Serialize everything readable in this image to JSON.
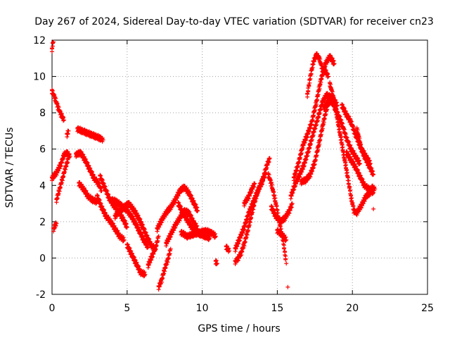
{
  "chart_data": {
    "type": "scatter",
    "title": "Day 267 of 2024, Sidereal Day-to-day VTEC variation (SDTVAR) for receiver cn23",
    "xlabel": "GPS time / hours",
    "ylabel": "SDTVAR / TECUs",
    "xlim": [
      0,
      25
    ],
    "ylim": [
      -2,
      12
    ],
    "xticks": [
      0,
      5,
      10,
      15,
      20,
      25
    ],
    "yticks": [
      -2,
      0,
      2,
      4,
      6,
      8,
      10,
      12
    ],
    "grid": true,
    "marker": "+",
    "series": [
      {
        "name": "SDTVAR",
        "color": "#ff0000",
        "note": "Values digitized from the plotted tracks (approximate).",
        "tracks": [
          [
            [
              0.0,
              11.5
            ],
            [
              0.05,
              11.8
            ],
            [
              0.1,
              11.9
            ]
          ],
          [
            [
              0.0,
              9.2
            ],
            [
              0.2,
              8.8
            ],
            [
              0.4,
              8.3
            ],
            [
              0.6,
              7.9
            ],
            [
              0.8,
              7.6
            ]
          ],
          [
            [
              0.0,
              4.4
            ],
            [
              0.3,
              4.7
            ],
            [
              0.6,
              5.2
            ],
            [
              0.8,
              5.7
            ],
            [
              1.0,
              5.8
            ],
            [
              1.2,
              5.6
            ]
          ],
          [
            [
              0.1,
              1.6
            ],
            [
              0.2,
              1.8
            ],
            [
              0.3,
              1.9
            ]
          ],
          [
            [
              0.3,
              3.2
            ],
            [
              0.5,
              3.8
            ],
            [
              0.7,
              4.4
            ],
            [
              0.9,
              5.0
            ],
            [
              1.1,
              5.5
            ]
          ],
          [
            [
              1.0,
              6.8
            ],
            [
              1.1,
              7.0
            ]
          ],
          [
            [
              1.7,
              7.1
            ],
            [
              2.0,
              7.0
            ],
            [
              2.3,
              6.9
            ],
            [
              2.6,
              6.8
            ],
            [
              2.9,
              6.7
            ],
            [
              3.2,
              6.6
            ],
            [
              3.4,
              6.5
            ]
          ],
          [
            [
              1.6,
              5.7
            ],
            [
              1.9,
              5.8
            ],
            [
              2.2,
              5.4
            ],
            [
              2.5,
              4.9
            ],
            [
              2.8,
              4.4
            ],
            [
              3.1,
              4.1
            ],
            [
              3.3,
              3.7
            ]
          ],
          [
            [
              1.8,
              4.1
            ],
            [
              2.1,
              3.8
            ],
            [
              2.4,
              3.4
            ],
            [
              2.7,
              3.2
            ],
            [
              3.0,
              3.1
            ]
          ],
          [
            [
              3.0,
              3.4
            ],
            [
              3.3,
              2.8
            ],
            [
              3.6,
              2.3
            ],
            [
              3.9,
              2.0
            ],
            [
              4.2,
              1.6
            ],
            [
              4.5,
              1.2
            ],
            [
              4.8,
              1.0
            ]
          ],
          [
            [
              3.2,
              4.5
            ],
            [
              3.5,
              3.9
            ],
            [
              3.8,
              3.3
            ],
            [
              4.1,
              2.9
            ],
            [
              4.4,
              2.6
            ],
            [
              4.7,
              2.2
            ],
            [
              5.0,
              1.7
            ]
          ],
          [
            [
              4.0,
              3.2
            ],
            [
              4.3,
              3.1
            ],
            [
              4.6,
              2.9
            ],
            [
              4.9,
              2.7
            ],
            [
              5.2,
              2.4
            ],
            [
              5.5,
              2.0
            ],
            [
              5.8,
              1.5
            ],
            [
              6.1,
              1.0
            ],
            [
              6.4,
              0.6
            ]
          ],
          [
            [
              4.2,
              2.3
            ],
            [
              4.5,
              2.6
            ],
            [
              4.8,
              2.8
            ],
            [
              5.1,
              3.0
            ],
            [
              5.4,
              2.7
            ],
            [
              5.7,
              2.3
            ],
            [
              6.0,
              1.8
            ],
            [
              6.3,
              1.2
            ],
            [
              6.6,
              0.7
            ],
            [
              6.9,
              0.5
            ]
          ],
          [
            [
              5.0,
              0.7
            ],
            [
              5.3,
              0.2
            ],
            [
              5.6,
              -0.3
            ],
            [
              5.9,
              -0.8
            ],
            [
              6.2,
              -0.9
            ]
          ],
          [
            [
              6.4,
              -0.4
            ],
            [
              6.7,
              0.2
            ],
            [
              6.9,
              0.6
            ],
            [
              7.1,
              1.2
            ]
          ],
          [
            [
              7.1,
              -1.6
            ],
            [
              7.3,
              -1.2
            ],
            [
              7.5,
              -0.6
            ],
            [
              7.7,
              -0.1
            ],
            [
              7.9,
              0.5
            ]
          ],
          [
            [
              7.0,
              1.6
            ],
            [
              7.3,
              2.1
            ],
            [
              7.6,
              2.5
            ],
            [
              7.9,
              2.8
            ],
            [
              8.2,
              3.2
            ],
            [
              8.5,
              3.7
            ],
            [
              8.8,
              3.9
            ],
            [
              9.1,
              3.6
            ],
            [
              9.4,
              3.1
            ],
            [
              9.7,
              2.6
            ]
          ],
          [
            [
              7.6,
              0.8
            ],
            [
              7.9,
              1.3
            ],
            [
              8.2,
              1.8
            ],
            [
              8.5,
              2.2
            ],
            [
              8.8,
              2.6
            ],
            [
              9.1,
              2.5
            ],
            [
              9.4,
              2.0
            ],
            [
              9.7,
              1.6
            ]
          ],
          [
            [
              8.4,
              3.0
            ],
            [
              8.7,
              2.5
            ],
            [
              9.0,
              2.1
            ],
            [
              9.3,
              1.7
            ],
            [
              9.6,
              1.4
            ],
            [
              9.9,
              1.3
            ],
            [
              10.2,
              1.2
            ],
            [
              10.5,
              1.1
            ]
          ],
          [
            [
              8.6,
              1.4
            ],
            [
              9.0,
              1.2
            ],
            [
              9.4,
              1.3
            ],
            [
              9.8,
              1.4
            ],
            [
              10.2,
              1.5
            ],
            [
              10.6,
              1.4
            ],
            [
              10.9,
              1.2
            ]
          ],
          [
            [
              10.9,
              -0.2
            ],
            [
              11.0,
              -0.3
            ]
          ],
          [
            [
              11.6,
              0.6
            ],
            [
              11.8,
              0.4
            ]
          ],
          [
            [
              12.2,
              -0.2
            ],
            [
              12.4,
              0.0
            ],
            [
              12.6,
              0.3
            ],
            [
              12.8,
              0.8
            ],
            [
              13.0,
              1.4
            ],
            [
              13.2,
              2.1
            ],
            [
              13.4,
              2.8
            ],
            [
              13.6,
              3.4
            ],
            [
              13.8,
              3.9
            ],
            [
              14.0,
              4.3
            ],
            [
              14.2,
              4.6
            ]
          ],
          [
            [
              12.2,
              0.5
            ],
            [
              12.5,
              1.1
            ],
            [
              12.8,
              1.7
            ],
            [
              13.1,
              2.5
            ],
            [
              13.4,
              3.1
            ],
            [
              13.7,
              3.7
            ],
            [
              14.0,
              4.2
            ],
            [
              14.3,
              5.1
            ],
            [
              14.5,
              5.5
            ]
          ],
          [
            [
              12.8,
              3.0
            ],
            [
              13.1,
              3.4
            ],
            [
              13.3,
              3.8
            ],
            [
              13.5,
              4.1
            ]
          ],
          [
            [
              14.4,
              4.6
            ],
            [
              14.6,
              4.1
            ],
            [
              14.8,
              3.4
            ],
            [
              15.0,
              2.6
            ],
            [
              15.2,
              1.7
            ],
            [
              15.4,
              0.9
            ],
            [
              15.5,
              0.3
            ],
            [
              15.6,
              -0.3
            ]
          ],
          [
            [
              14.6,
              2.8
            ],
            [
              14.9,
              2.3
            ],
            [
              15.2,
              2.0
            ],
            [
              15.5,
              2.2
            ],
            [
              15.8,
              2.6
            ],
            [
              16.0,
              3.0
            ]
          ],
          [
            [
              15.0,
              1.5
            ],
            [
              15.3,
              1.3
            ],
            [
              15.6,
              1.0
            ]
          ],
          [
            [
              15.7,
              -1.6
            ]
          ],
          [
            [
              15.9,
              3.4
            ],
            [
              16.2,
              4.1
            ],
            [
              16.5,
              4.6
            ],
            [
              16.8,
              5.2
            ],
            [
              17.1,
              6.0
            ],
            [
              17.4,
              6.9
            ],
            [
              17.7,
              7.7
            ],
            [
              18.0,
              8.6
            ],
            [
              18.3,
              9.0
            ],
            [
              18.6,
              8.8
            ],
            [
              18.9,
              8.1
            ]
          ],
          [
            [
              16.6,
              4.2
            ],
            [
              16.9,
              4.3
            ],
            [
              17.2,
              4.6
            ],
            [
              17.5,
              5.3
            ],
            [
              17.8,
              6.4
            ],
            [
              18.1,
              7.6
            ],
            [
              18.4,
              8.6
            ],
            [
              18.7,
              8.8
            ],
            [
              19.0,
              8.4
            ]
          ],
          [
            [
              16.1,
              4.4
            ],
            [
              16.4,
              5.2
            ],
            [
              16.7,
              6.2
            ],
            [
              17.0,
              6.8
            ],
            [
              17.3,
              7.5
            ],
            [
              17.6,
              8.6
            ],
            [
              17.9,
              9.8
            ],
            [
              18.2,
              10.7
            ],
            [
              18.5,
              11.1
            ],
            [
              18.8,
              10.7
            ]
          ],
          [
            [
              17.0,
              9.0
            ],
            [
              17.2,
              10.0
            ],
            [
              17.4,
              10.8
            ],
            [
              17.6,
              11.2
            ],
            [
              17.8,
              11.0
            ],
            [
              18.0,
              10.4
            ],
            [
              18.2,
              10.3
            ],
            [
              18.4,
              10.0
            ]
          ],
          [
            [
              18.1,
              8.3
            ],
            [
              18.4,
              8.6
            ],
            [
              18.7,
              8.6
            ],
            [
              19.0,
              8.0
            ],
            [
              19.3,
              7.4
            ],
            [
              19.6,
              6.6
            ],
            [
              19.9,
              6.0
            ],
            [
              20.2,
              5.6
            ],
            [
              20.5,
              5.2
            ]
          ],
          [
            [
              18.5,
              9.6
            ],
            [
              18.8,
              8.6
            ],
            [
              19.1,
              7.2
            ],
            [
              19.4,
              5.8
            ],
            [
              19.7,
              4.4
            ],
            [
              19.9,
              3.4
            ],
            [
              20.1,
              2.6
            ],
            [
              20.3,
              2.5
            ],
            [
              20.6,
              2.9
            ],
            [
              20.9,
              3.4
            ],
            [
              21.2,
              3.6
            ]
          ],
          [
            [
              19.3,
              8.4
            ],
            [
              19.6,
              7.9
            ],
            [
              19.9,
              7.5
            ],
            [
              20.2,
              6.8
            ],
            [
              20.5,
              6.2
            ],
            [
              20.8,
              5.6
            ],
            [
              21.1,
              5.1
            ],
            [
              21.4,
              4.6
            ]
          ],
          [
            [
              19.6,
              5.8
            ],
            [
              19.9,
              5.4
            ],
            [
              20.2,
              5.0
            ],
            [
              20.5,
              4.5
            ],
            [
              20.8,
              4.0
            ],
            [
              21.1,
              3.8
            ],
            [
              21.4,
              3.6
            ]
          ],
          [
            [
              20.3,
              7.1
            ],
            [
              20.6,
              6.0
            ],
            [
              20.9,
              5.6
            ],
            [
              21.2,
              5.2
            ]
          ],
          [
            [
              21.4,
              2.7
            ]
          ],
          [
            [
              21.3,
              3.9
            ],
            [
              21.5,
              3.8
            ]
          ]
        ]
      }
    ]
  }
}
